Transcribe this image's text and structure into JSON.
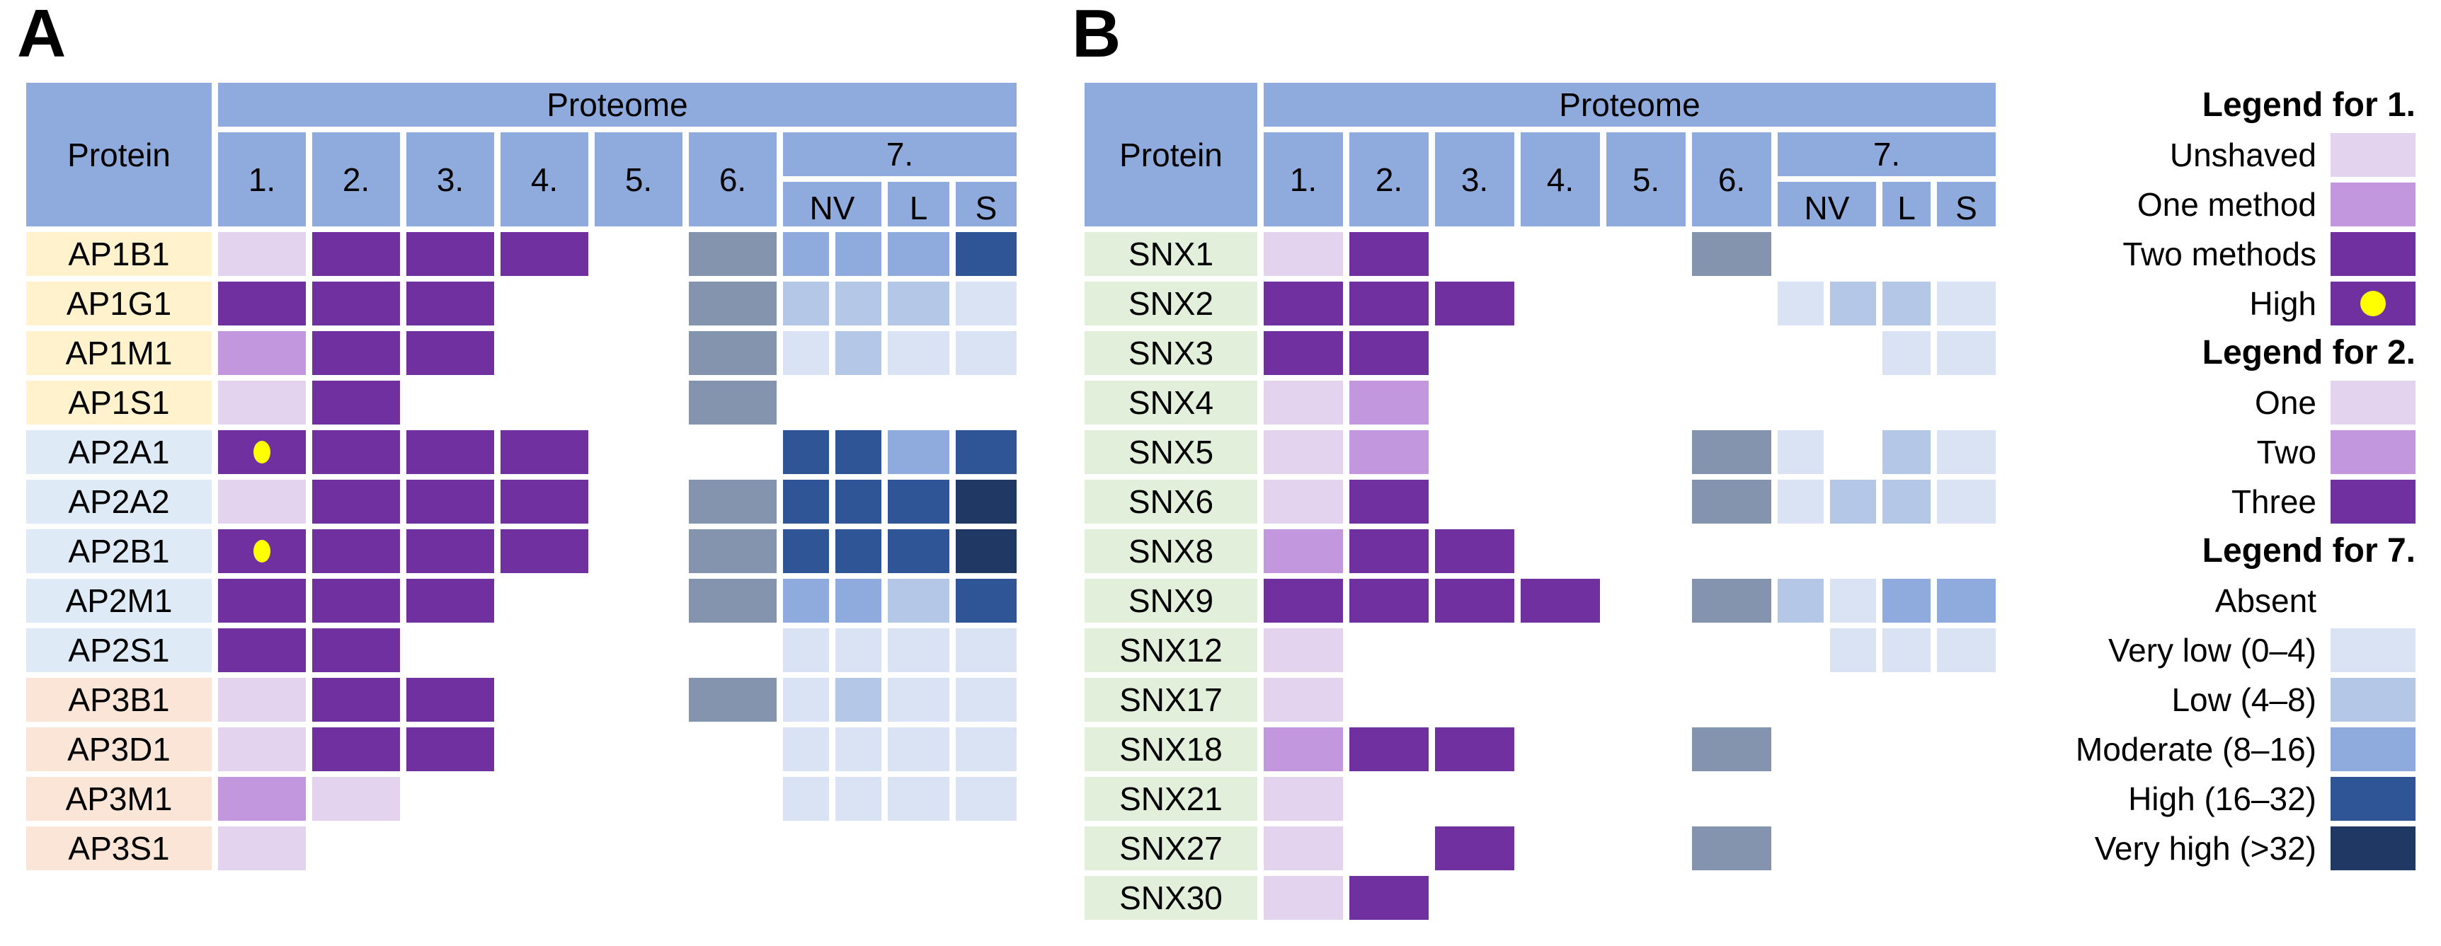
{
  "colors": {
    "header_blue": "#8faadc",
    "gray_blue": "#8494af",
    "lavender_light": "#e3d3ef",
    "lavender_mid": "#c297de",
    "purple_dark": "#7030a0",
    "dot_yellow": "#ffff00",
    "blue_very_low": "#dae3f3",
    "blue_low": "#b4c7e7",
    "blue_moderate": "#8faadc",
    "blue_high": "#2f5597",
    "blue_very_high": "#1f3864",
    "label_yellow": "#fff2cc",
    "label_blue": "#deebf7",
    "label_orange": "#fbe5d6",
    "label_green": "#e2efda",
    "text": "#000000"
  },
  "cell_color_map": {
    "L1": "lavender_light",
    "M1": "lavender_mid",
    "D1": "purple_dark",
    "HD": "purple_dark",
    "G": "gray_blue",
    "VL": "blue_very_low",
    "LO": "blue_low",
    "MO": "blue_moderate",
    "HI": "blue_high",
    "VH": "blue_very_high"
  },
  "group_colors": {
    "yellow": "label_yellow",
    "blue": "label_blue",
    "orange": "label_orange",
    "green": "label_green"
  },
  "panels": [
    {
      "id": "A",
      "title": "A",
      "header": {
        "protein": "Protein",
        "proteome": "Proteome",
        "numbers": [
          "1.",
          "2.",
          "3.",
          "4.",
          "5.",
          "6."
        ],
        "seven": "7.",
        "sub": [
          "NV",
          "L",
          "S"
        ]
      },
      "rows": [
        {
          "label": "AP1B1",
          "group": "yellow",
          "cells": [
            "L1",
            "D1",
            "D1",
            "D1",
            "",
            "G",
            "MO",
            "MO",
            "MO",
            "HI"
          ]
        },
        {
          "label": "AP1G1",
          "group": "yellow",
          "cells": [
            "D1",
            "D1",
            "D1",
            "",
            "",
            "G",
            "LO",
            "LO",
            "LO",
            "VL"
          ]
        },
        {
          "label": "AP1M1",
          "group": "yellow",
          "cells": [
            "M1",
            "D1",
            "D1",
            "",
            "",
            "G",
            "VL",
            "LO",
            "VL",
            "VL"
          ]
        },
        {
          "label": "AP1S1",
          "group": "yellow",
          "cells": [
            "L1",
            "D1",
            "",
            "",
            "",
            "G",
            "",
            "",
            "",
            ""
          ]
        },
        {
          "label": "AP2A1",
          "group": "blue",
          "cells": [
            "HD",
            "D1",
            "D1",
            "D1",
            "",
            "",
            "HI",
            "HI",
            "MO",
            "HI"
          ]
        },
        {
          "label": "AP2A2",
          "group": "blue",
          "cells": [
            "L1",
            "D1",
            "D1",
            "D1",
            "",
            "G",
            "HI",
            "HI",
            "HI",
            "VH"
          ]
        },
        {
          "label": "AP2B1",
          "group": "blue",
          "cells": [
            "HD",
            "D1",
            "D1",
            "D1",
            "",
            "G",
            "HI",
            "HI",
            "HI",
            "VH"
          ]
        },
        {
          "label": "AP2M1",
          "group": "blue",
          "cells": [
            "D1",
            "D1",
            "D1",
            "",
            "",
            "G",
            "MO",
            "MO",
            "LO",
            "HI"
          ]
        },
        {
          "label": "AP2S1",
          "group": "blue",
          "cells": [
            "D1",
            "D1",
            "",
            "",
            "",
            "",
            "VL",
            "VL",
            "VL",
            "VL"
          ]
        },
        {
          "label": "AP3B1",
          "group": "orange",
          "cells": [
            "L1",
            "D1",
            "D1",
            "",
            "",
            "G",
            "VL",
            "LO",
            "VL",
            "VL"
          ]
        },
        {
          "label": "AP3D1",
          "group": "orange",
          "cells": [
            "L1",
            "D1",
            "D1",
            "",
            "",
            "",
            "VL",
            "VL",
            "VL",
            "VL"
          ]
        },
        {
          "label": "AP3M1",
          "group": "orange",
          "cells": [
            "M1",
            "L1",
            "",
            "",
            "",
            "",
            "VL",
            "VL",
            "VL",
            "VL"
          ]
        },
        {
          "label": "AP3S1",
          "group": "orange",
          "cells": [
            "L1",
            "",
            "",
            "",
            "",
            "",
            "",
            "",
            "",
            ""
          ]
        }
      ]
    },
    {
      "id": "B",
      "title": "B",
      "header": {
        "protein": "Protein",
        "proteome": "Proteome",
        "numbers": [
          "1.",
          "2.",
          "3.",
          "4.",
          "5.",
          "6."
        ],
        "seven": "7.",
        "sub": [
          "NV",
          "L",
          "S"
        ]
      },
      "rows": [
        {
          "label": "SNX1",
          "group": "green",
          "cells": [
            "L1",
            "D1",
            "",
            "",
            "",
            "G",
            "",
            "",
            "",
            ""
          ]
        },
        {
          "label": "SNX2",
          "group": "green",
          "cells": [
            "D1",
            "D1",
            "D1",
            "",
            "",
            "",
            "VL",
            "LO",
            "LO",
            "VL"
          ]
        },
        {
          "label": "SNX3",
          "group": "green",
          "cells": [
            "D1",
            "D1",
            "",
            "",
            "",
            "",
            "",
            "",
            "VL",
            "VL"
          ]
        },
        {
          "label": "SNX4",
          "group": "green",
          "cells": [
            "L1",
            "M1",
            "",
            "",
            "",
            "",
            "",
            "",
            "",
            ""
          ]
        },
        {
          "label": "SNX5",
          "group": "green",
          "cells": [
            "L1",
            "M1",
            "",
            "",
            "",
            "G",
            "VL",
            "",
            "LO",
            "VL"
          ]
        },
        {
          "label": "SNX6",
          "group": "green",
          "cells": [
            "L1",
            "D1",
            "",
            "",
            "",
            "G",
            "VL",
            "LO",
            "LO",
            "VL"
          ]
        },
        {
          "label": "SNX8",
          "group": "green",
          "cells": [
            "M1",
            "D1",
            "D1",
            "",
            "",
            "",
            "",
            "",
            "",
            ""
          ]
        },
        {
          "label": "SNX9",
          "group": "green",
          "cells": [
            "D1",
            "D1",
            "D1",
            "D1",
            "",
            "G",
            "LO",
            "VL",
            "MO",
            "MO"
          ]
        },
        {
          "label": "SNX12",
          "group": "green",
          "cells": [
            "L1",
            "",
            "",
            "",
            "",
            "",
            "",
            "VL",
            "VL",
            "VL"
          ]
        },
        {
          "label": "SNX17",
          "group": "green",
          "cells": [
            "L1",
            "",
            "",
            "",
            "",
            "",
            "",
            "",
            "",
            ""
          ]
        },
        {
          "label": "SNX18",
          "group": "green",
          "cells": [
            "M1",
            "D1",
            "D1",
            "",
            "",
            "G",
            "",
            "",
            "",
            ""
          ]
        },
        {
          "label": "SNX21",
          "group": "green",
          "cells": [
            "L1",
            "",
            "",
            "",
            "",
            "",
            "",
            "",
            "",
            ""
          ]
        },
        {
          "label": "SNX27",
          "group": "green",
          "cells": [
            "L1",
            "",
            "D1",
            "",
            "",
            "G",
            "",
            "",
            "",
            ""
          ]
        },
        {
          "label": "SNX30",
          "group": "green",
          "cells": [
            "L1",
            "D1",
            "",
            "",
            "",
            "",
            "",
            "",
            "",
            ""
          ]
        }
      ]
    }
  ],
  "legend": {
    "sections": [
      {
        "title": "Legend for 1.",
        "entries": [
          {
            "label": "Unshaved",
            "code": "L1"
          },
          {
            "label": "One method",
            "code": "M1"
          },
          {
            "label": "Two methods",
            "code": "D1"
          },
          {
            "label": "High",
            "code": "HD"
          }
        ]
      },
      {
        "title": "Legend for 2.",
        "entries": [
          {
            "label": "One",
            "code": "L1"
          },
          {
            "label": "Two",
            "code": "M1"
          },
          {
            "label": "Three",
            "code": "D1"
          }
        ]
      },
      {
        "title": "Legend for 7.",
        "entries": [
          {
            "label": "Absent",
            "code": ""
          },
          {
            "label": "Very low (0–4)",
            "code": "VL"
          },
          {
            "label": "Low (4–8)",
            "code": "LO"
          },
          {
            "label": "Moderate (8–16)",
            "code": "MO"
          },
          {
            "label": "High (16–32)",
            "code": "HI"
          },
          {
            "label": "Very high (>32)",
            "code": "VH"
          }
        ]
      }
    ]
  },
  "chart_data": [
    {
      "type": "heatmap",
      "title": "A",
      "columns": [
        "1.",
        "2.",
        "3.",
        "4.",
        "5.",
        "6.",
        "7.NV-1",
        "7.NV-2",
        "7.L",
        "7.S"
      ],
      "row_labels": [
        "AP1B1",
        "AP1G1",
        "AP1M1",
        "AP1S1",
        "AP2A1",
        "AP2A2",
        "AP2B1",
        "AP2M1",
        "AP2S1",
        "AP3B1",
        "AP3D1",
        "AP3M1",
        "AP3S1"
      ],
      "values": [
        [
          "L1",
          "D1",
          "D1",
          "D1",
          "",
          "G",
          "MO",
          "MO",
          "MO",
          "HI"
        ],
        [
          "D1",
          "D1",
          "D1",
          "",
          "",
          "G",
          "LO",
          "LO",
          "LO",
          "VL"
        ],
        [
          "M1",
          "D1",
          "D1",
          "",
          "",
          "G",
          "VL",
          "LO",
          "VL",
          "VL"
        ],
        [
          "L1",
          "D1",
          "",
          "",
          "",
          "G",
          "",
          "",
          "",
          ""
        ],
        [
          "HD",
          "D1",
          "D1",
          "D1",
          "",
          "",
          "HI",
          "HI",
          "MO",
          "HI"
        ],
        [
          "L1",
          "D1",
          "D1",
          "D1",
          "",
          "G",
          "HI",
          "HI",
          "HI",
          "VH"
        ],
        [
          "HD",
          "D1",
          "D1",
          "D1",
          "",
          "G",
          "HI",
          "HI",
          "HI",
          "VH"
        ],
        [
          "D1",
          "D1",
          "D1",
          "",
          "",
          "G",
          "MO",
          "MO",
          "LO",
          "HI"
        ],
        [
          "D1",
          "D1",
          "",
          "",
          "",
          "",
          "VL",
          "VL",
          "VL",
          "VL"
        ],
        [
          "L1",
          "D1",
          "D1",
          "",
          "",
          "G",
          "VL",
          "LO",
          "VL",
          "VL"
        ],
        [
          "L1",
          "D1",
          "D1",
          "",
          "",
          "",
          "VL",
          "VL",
          "VL",
          "VL"
        ],
        [
          "M1",
          "L1",
          "",
          "",
          "",
          "",
          "VL",
          "VL",
          "VL",
          "VL"
        ],
        [
          "L1",
          "",
          "",
          "",
          "",
          "",
          "",
          "",
          "",
          ""
        ]
      ],
      "value_legend": {
        "L1": "Unshaved / One",
        "M1": "One method / Two",
        "D1": "Two methods / Three",
        "HD": "High (dark purple with yellow dot)",
        "G": "gray (column 6 present)",
        "VL": "Very low (0–4)",
        "LO": "Low (4–8)",
        "MO": "Moderate (8–16)",
        "HI": "High (16–32)",
        "VH": "Very high (>32)",
        "": "Absent"
      }
    },
    {
      "type": "heatmap",
      "title": "B",
      "columns": [
        "1.",
        "2.",
        "3.",
        "4.",
        "5.",
        "6.",
        "7.NV-1",
        "7.NV-2",
        "7.L",
        "7.S"
      ],
      "row_labels": [
        "SNX1",
        "SNX2",
        "SNX3",
        "SNX4",
        "SNX5",
        "SNX6",
        "SNX8",
        "SNX9",
        "SNX12",
        "SNX17",
        "SNX18",
        "SNX21",
        "SNX27",
        "SNX30"
      ],
      "values": [
        [
          "L1",
          "D1",
          "",
          "",
          "",
          "G",
          "",
          "",
          "",
          ""
        ],
        [
          "D1",
          "D1",
          "D1",
          "",
          "",
          "",
          "VL",
          "LO",
          "LO",
          "VL"
        ],
        [
          "D1",
          "D1",
          "",
          "",
          "",
          "",
          "",
          "",
          "VL",
          "VL"
        ],
        [
          "L1",
          "M1",
          "",
          "",
          "",
          "",
          "",
          "",
          "",
          ""
        ],
        [
          "L1",
          "M1",
          "",
          "",
          "",
          "G",
          "VL",
          "",
          "LO",
          "VL"
        ],
        [
          "L1",
          "D1",
          "",
          "",
          "",
          "G",
          "VL",
          "LO",
          "LO",
          "VL"
        ],
        [
          "M1",
          "D1",
          "D1",
          "",
          "",
          "",
          "",
          "",
          "",
          ""
        ],
        [
          "D1",
          "D1",
          "D1",
          "D1",
          "",
          "G",
          "LO",
          "VL",
          "MO",
          "MO"
        ],
        [
          "L1",
          "",
          "",
          "",
          "",
          "",
          "",
          "VL",
          "VL",
          "VL"
        ],
        [
          "L1",
          "",
          "",
          "",
          "",
          "",
          "",
          "",
          "",
          ""
        ],
        [
          "M1",
          "D1",
          "D1",
          "",
          "",
          "G",
          "",
          "",
          "",
          ""
        ],
        [
          "L1",
          "",
          "",
          "",
          "",
          "",
          "",
          "",
          "",
          ""
        ],
        [
          "L1",
          "",
          "D1",
          "",
          "",
          "G",
          "",
          "",
          "",
          ""
        ],
        [
          "L1",
          "D1",
          "",
          "",
          "",
          "",
          "",
          "",
          "",
          ""
        ]
      ]
    }
  ]
}
